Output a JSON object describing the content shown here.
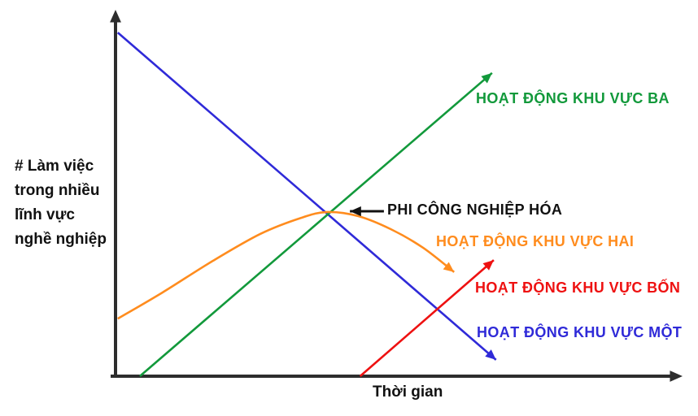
{
  "colors": {
    "axis": "#2d2d2d",
    "annotation": "#111111",
    "background": "#ffffff"
  },
  "chart_data": {
    "type": "line",
    "title": "",
    "xlabel": "Thời gian",
    "ylabel": "# Làm việc trong nhiều lĩnh vực nghề nghiệp",
    "ylabel_lines": "# Làm việc\ntrong nhiều\nlĩnh vực\nnghề nghiệp",
    "axes": {
      "x_range": [
        0,
        1
      ],
      "y_range": [
        0,
        1
      ],
      "ticks": "none (conceptual diagram, unlabeled axes with arrowheads)",
      "grid": false
    },
    "legend_position": "labels placed beside each line end, colored to match line",
    "series": [
      {
        "name": "HOẠT ĐỘNG KHU VỰC MỘT",
        "color": "#2f2ad8",
        "trend": "straight declining line from top-left, arrowhead at lower-right end",
        "points": [
          [
            0.004,
            0.944
          ],
          [
            0.672,
            0.045
          ]
        ]
      },
      {
        "name": "HOẠT ĐỘNG KHU VỰC BA",
        "color": "#12993b",
        "trend": "straight rising line from x-axis, arrowhead at upper-right end",
        "points": [
          [
            0.043,
            0.0
          ],
          [
            0.665,
            0.833
          ]
        ]
      },
      {
        "name": "HOẠT ĐỘNG KHU VỰC HAI",
        "color": "#ff8c1e",
        "trend": "inverted-U curve peaking where sector-one and sector-three lines cross, arrowhead at declining end",
        "points": [
          [
            0.004,
            0.158
          ],
          [
            0.083,
            0.23
          ],
          [
            0.17,
            0.315
          ],
          [
            0.256,
            0.391
          ],
          [
            0.328,
            0.435
          ],
          [
            0.374,
            0.451
          ],
          [
            0.428,
            0.44
          ],
          [
            0.486,
            0.404
          ],
          [
            0.543,
            0.353
          ],
          [
            0.598,
            0.286
          ]
        ]
      },
      {
        "name": "HOẠT ĐỘNG KHU VỰC BỐN",
        "color": "#ee1111",
        "trend": "straight rising line starting late on x-axis, arrowhead at upper-right end",
        "points": [
          [
            0.432,
            0.0
          ],
          [
            0.668,
            0.319
          ]
        ]
      }
    ],
    "annotation": {
      "text": "PHI CÔNG NGHIỆP HÓA",
      "arrow_from": [
        0.474,
        0.453
      ],
      "arrow_to": [
        0.414,
        0.453
      ],
      "note": "black arrow points left at the peak of the sector-two curve where it meets the sector-one and sector-three lines"
    }
  }
}
